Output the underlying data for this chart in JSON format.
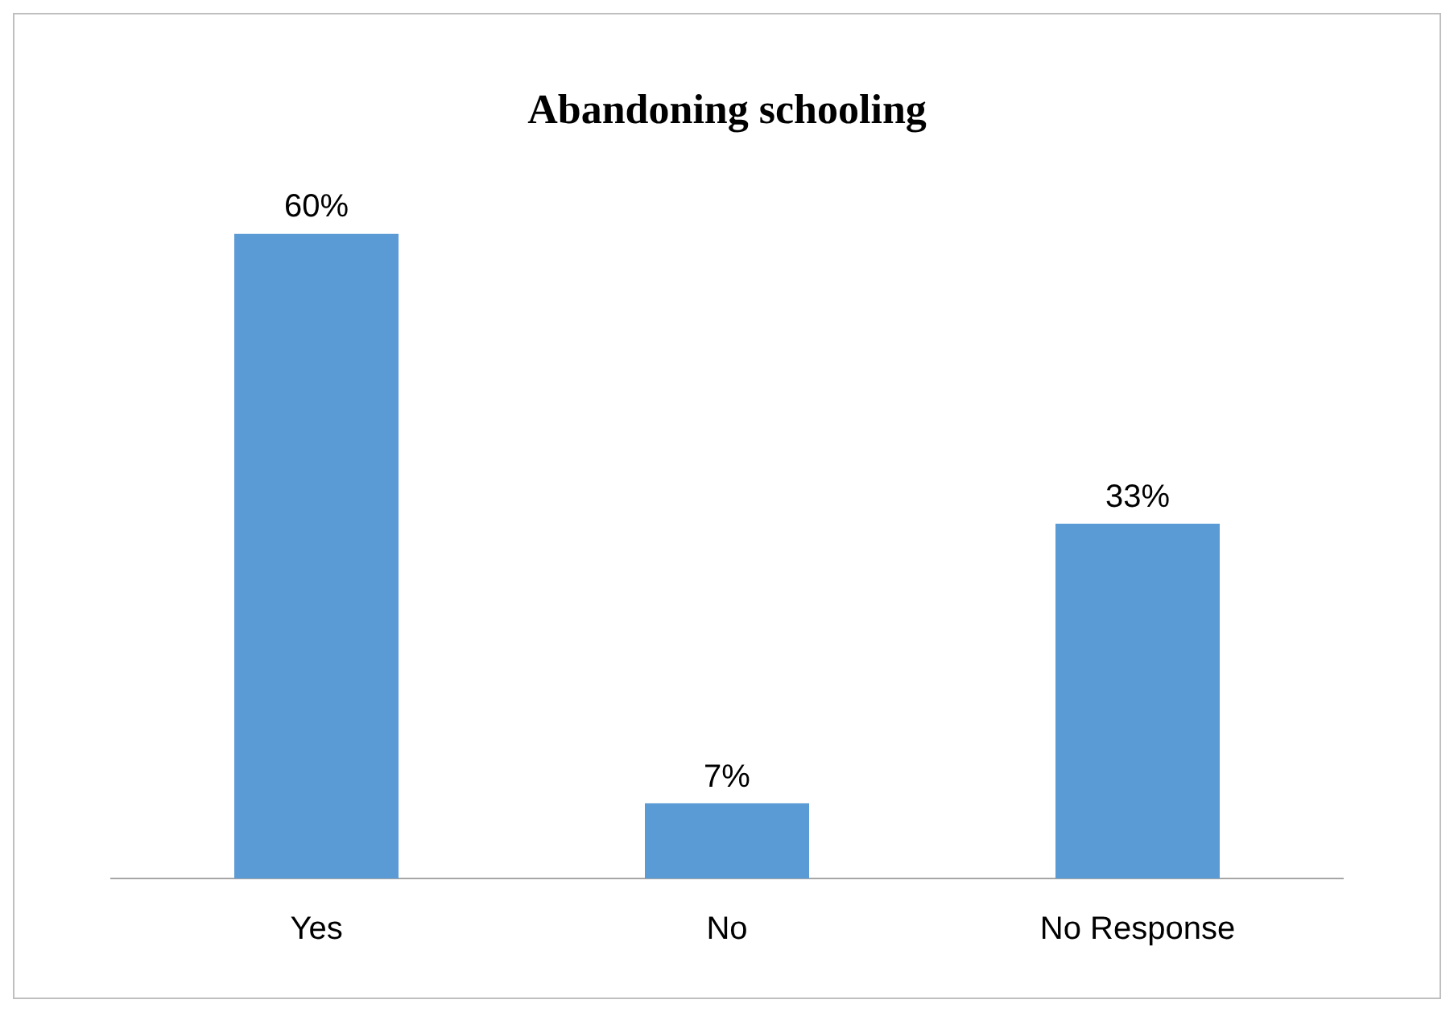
{
  "chart_data": {
    "type": "bar",
    "title": "Abandoning schooling",
    "categories": [
      "Yes",
      "No",
      "No Response"
    ],
    "values": [
      60,
      7,
      33
    ],
    "value_labels": [
      "60%",
      "7%",
      "33%"
    ],
    "color": "#5b9bd5",
    "legend": false,
    "grid": false
  }
}
